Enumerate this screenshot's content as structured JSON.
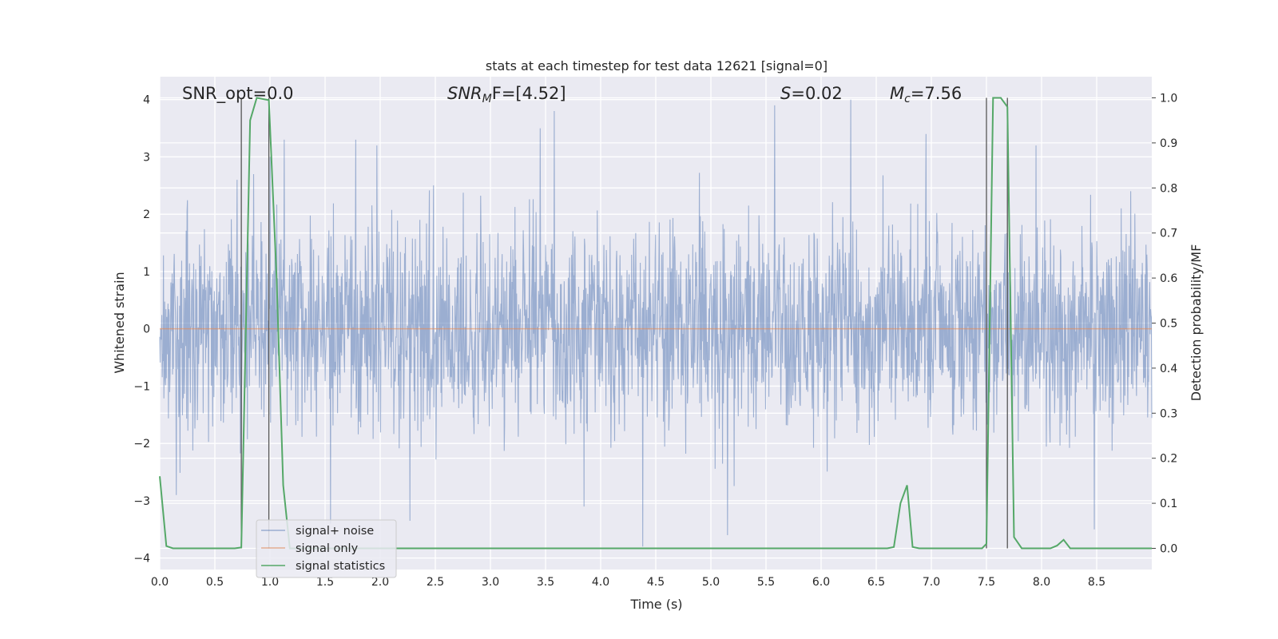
{
  "chart_data": {
    "type": "line",
    "title": "stats at each timestep for test data 12621 [signal=0]",
    "xlabel": "Time (s)",
    "ylabel": "Whitened strain",
    "ylabel_right": "Detection probability/MF",
    "xlim": [
      0,
      9.0
    ],
    "ylim": [
      -4.2,
      4.4
    ],
    "ylim_right": [
      -0.047,
      1.047
    ],
    "x_ticks": [
      "0.0",
      "0.5",
      "1.0",
      "1.5",
      "2.0",
      "2.5",
      "3.0",
      "3.5",
      "4.0",
      "4.5",
      "5.0",
      "5.5",
      "6.0",
      "6.5",
      "7.0",
      "7.5",
      "8.0",
      "8.5"
    ],
    "y_ticks": [
      "4",
      "3",
      "2",
      "1",
      "0",
      "−1",
      "−2",
      "−3",
      "−4"
    ],
    "y_right_ticks": [
      "1.0",
      "0.9",
      "0.8",
      "0.7",
      "0.6",
      "0.5",
      "0.4",
      "0.3",
      "0.2",
      "0.1",
      "0.0"
    ],
    "grid": true,
    "legend_position": "lower-left",
    "annotations": {
      "snr_opt": "SNR_opt=0.0",
      "snr_mf_main": "SNR",
      "snr_mf_sub": "M",
      "snr_mf_rest": "F=[4.52]",
      "s_main": "S",
      "s_rest": "=0.02",
      "mc_main": "M",
      "mc_sub": "c",
      "mc_rest": "=7.56"
    },
    "vertical_lines_x": [
      0.74,
      0.99,
      7.5,
      7.69
    ],
    "series": [
      {
        "name": "signal+ noise",
        "color": "#4c72b0",
        "note_amplitude_envelope": [
          1.0,
          3.9
        ],
        "highlight_spikes": [
          {
            "x": 0.7,
            "y": 2.6
          },
          {
            "x": 0.85,
            "y": 2.7
          },
          {
            "x": 1.0,
            "y": 3.0
          },
          {
            "x": 1.13,
            "y": 3.3
          },
          {
            "x": 1.78,
            "y": 3.3
          },
          {
            "x": 1.97,
            "y": 3.2
          },
          {
            "x": 3.45,
            "y": 3.5
          },
          {
            "x": 3.58,
            "y": 3.8
          },
          {
            "x": 5.58,
            "y": 3.9
          },
          {
            "x": 6.27,
            "y": 4.0
          },
          {
            "x": 6.95,
            "y": 3.4
          },
          {
            "x": 7.95,
            "y": 3.2
          },
          {
            "x": 4.38,
            "y": -3.8
          },
          {
            "x": 5.15,
            "y": -3.6
          },
          {
            "x": 8.48,
            "y": -3.5
          },
          {
            "x": 1.55,
            "y": -3.4
          },
          {
            "x": 2.27,
            "y": -3.35
          },
          {
            "x": 3.85,
            "y": -3.1
          },
          {
            "x": 0.15,
            "y": -2.9
          }
        ]
      },
      {
        "name": "signal only",
        "color": "#dd8452",
        "values_constant": 0.0
      },
      {
        "name": "signal statistics",
        "color": "#55a868",
        "axis": "right",
        "points": [
          [
            0.0,
            0.16
          ],
          [
            0.06,
            0.005
          ],
          [
            0.12,
            0.0
          ],
          [
            0.68,
            0.0
          ],
          [
            0.74,
            0.002
          ],
          [
            0.82,
            0.95
          ],
          [
            0.88,
            1.0
          ],
          [
            0.99,
            0.995
          ],
          [
            1.06,
            0.6
          ],
          [
            1.12,
            0.14
          ],
          [
            1.18,
            0.0
          ],
          [
            6.6,
            0.0
          ],
          [
            6.66,
            0.003
          ],
          [
            6.72,
            0.1
          ],
          [
            6.78,
            0.14
          ],
          [
            6.83,
            0.003
          ],
          [
            6.89,
            0.0
          ],
          [
            7.46,
            0.0
          ],
          [
            7.5,
            0.01
          ],
          [
            7.56,
            1.0
          ],
          [
            7.63,
            1.0
          ],
          [
            7.69,
            0.98
          ],
          [
            7.75,
            0.025
          ],
          [
            7.82,
            0.0
          ],
          [
            8.08,
            0.0
          ],
          [
            8.14,
            0.006
          ],
          [
            8.2,
            0.019
          ],
          [
            8.26,
            0.0
          ],
          [
            9.0,
            0.0
          ]
        ]
      }
    ]
  }
}
